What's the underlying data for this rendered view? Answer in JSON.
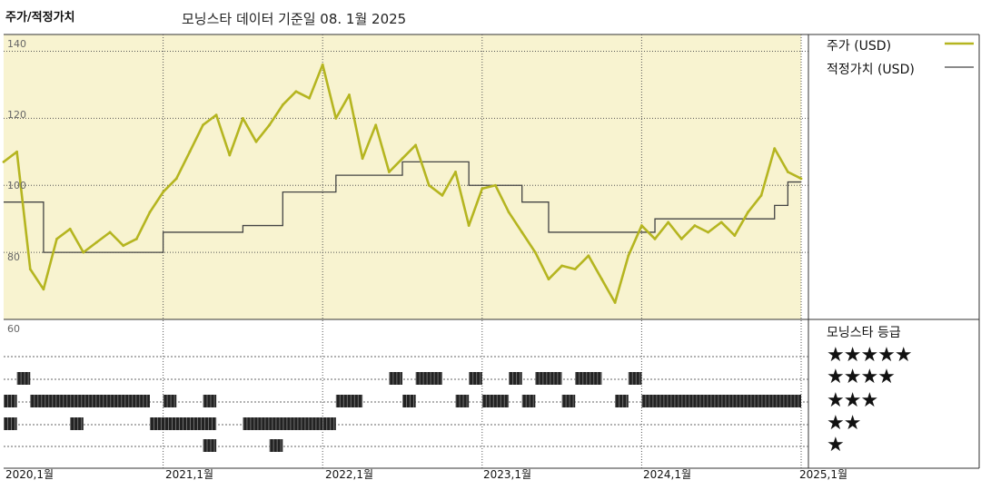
{
  "header": {
    "title": "주가/적정가치",
    "subtitle": "모닝스타 데이터 기준일 08. 1월 2025"
  },
  "legend": {
    "price_label": "주가 (USD)",
    "fair_label": "적정가치 (USD)"
  },
  "rating": {
    "title": "모닝스타 등급",
    "rows": [
      "★★★★★",
      "★★★★",
      "★★★",
      "★★",
      "★"
    ]
  },
  "colors": {
    "panel_bg": "#f8f3d0",
    "price_line": "#b5b520",
    "fair_line": "#444444",
    "grid": "#555555"
  },
  "chart_data": [
    {
      "type": "line",
      "title": "",
      "xlabel": "",
      "ylabel": "",
      "xlim": [
        "2020-01",
        "2025-01"
      ],
      "ylim": [
        60,
        145
      ],
      "y_ticks": [
        "140",
        "120",
        "100",
        "80",
        "60"
      ],
      "x_ticks": [
        "2020,1월",
        "2021,1월",
        "2022,1월",
        "2023,1월",
        "2024,1월",
        "2025,1월"
      ],
      "series": [
        {
          "name": "주가 (USD)",
          "points": [
            [
              "2020-01",
              107
            ],
            [
              "2020-02",
              110
            ],
            [
              "2020-03",
              75
            ],
            [
              "2020-04",
              69
            ],
            [
              "2020-05",
              84
            ],
            [
              "2020-06",
              87
            ],
            [
              "2020-07",
              80
            ],
            [
              "2020-08",
              83
            ],
            [
              "2020-09",
              86
            ],
            [
              "2020-10",
              82
            ],
            [
              "2020-11",
              84
            ],
            [
              "2020-12",
              92
            ],
            [
              "2021-01",
              98
            ],
            [
              "2021-02",
              102
            ],
            [
              "2021-03",
              110
            ],
            [
              "2021-04",
              118
            ],
            [
              "2021-05",
              121
            ],
            [
              "2021-06",
              109
            ],
            [
              "2021-07",
              120
            ],
            [
              "2021-08",
              113
            ],
            [
              "2021-09",
              118
            ],
            [
              "2021-10",
              124
            ],
            [
              "2021-11",
              128
            ],
            [
              "2021-12",
              126
            ],
            [
              "2022-01",
              136
            ],
            [
              "2022-02",
              120
            ],
            [
              "2022-03",
              127
            ],
            [
              "2022-04",
              108
            ],
            [
              "2022-05",
              118
            ],
            [
              "2022-06",
              104
            ],
            [
              "2022-07",
              108
            ],
            [
              "2022-08",
              112
            ],
            [
              "2022-09",
              100
            ],
            [
              "2022-10",
              97
            ],
            [
              "2022-11",
              104
            ],
            [
              "2022-12",
              88
            ],
            [
              "2023-01",
              99
            ],
            [
              "2023-02",
              100
            ],
            [
              "2023-03",
              92
            ],
            [
              "2023-04",
              86
            ],
            [
              "2023-05",
              80
            ],
            [
              "2023-06",
              72
            ],
            [
              "2023-07",
              76
            ],
            [
              "2023-08",
              75
            ],
            [
              "2023-09",
              79
            ],
            [
              "2023-10",
              72
            ],
            [
              "2023-11",
              65
            ],
            [
              "2023-12",
              79
            ],
            [
              "2024-01",
              88
            ],
            [
              "2024-02",
              84
            ],
            [
              "2024-03",
              89
            ],
            [
              "2024-04",
              84
            ],
            [
              "2024-05",
              88
            ],
            [
              "2024-06",
              86
            ],
            [
              "2024-07",
              89
            ],
            [
              "2024-08",
              85
            ],
            [
              "2024-09",
              92
            ],
            [
              "2024-10",
              97
            ],
            [
              "2024-11",
              111
            ],
            [
              "2024-12",
              104
            ],
            [
              "2025-01",
              102
            ]
          ]
        },
        {
          "name": "적정가치 (USD)",
          "step": true,
          "points": [
            [
              "2020-01",
              95
            ],
            [
              "2020-03",
              95
            ],
            [
              "2020-04",
              80
            ],
            [
              "2020-07",
              80
            ],
            [
              "2020-12",
              80
            ],
            [
              "2021-01",
              86
            ],
            [
              "2021-06",
              86
            ],
            [
              "2021-07",
              88
            ],
            [
              "2021-09",
              88
            ],
            [
              "2021-10",
              98
            ],
            [
              "2022-01",
              98
            ],
            [
              "2022-02",
              103
            ],
            [
              "2022-06",
              103
            ],
            [
              "2022-07",
              107
            ],
            [
              "2022-11",
              107
            ],
            [
              "2022-12",
              100
            ],
            [
              "2023-03",
              100
            ],
            [
              "2023-04",
              95
            ],
            [
              "2023-05",
              95
            ],
            [
              "2023-06",
              86
            ],
            [
              "2024-01",
              86
            ],
            [
              "2024-02",
              90
            ],
            [
              "2024-10",
              90
            ],
            [
              "2024-11",
              94
            ],
            [
              "2024-12",
              101
            ],
            [
              "2025-01",
              101
            ]
          ]
        }
      ]
    },
    {
      "type": "heatmap",
      "title": "모닝스타 등급",
      "rows": [
        5,
        4,
        3,
        2,
        1
      ],
      "segments": [
        {
          "stars": 4,
          "start": "2020-02",
          "end": "2020-03"
        },
        {
          "stars": 3,
          "start": "2020-01",
          "end": "2020-02"
        },
        {
          "stars": 3,
          "start": "2020-03",
          "end": "2020-12"
        },
        {
          "stars": 3,
          "start": "2021-01",
          "end": "2021-02"
        },
        {
          "stars": 3,
          "start": "2021-04",
          "end": "2021-05"
        },
        {
          "stars": 2,
          "start": "2020-01",
          "end": "2020-02"
        },
        {
          "stars": 2,
          "start": "2020-06",
          "end": "2020-07"
        },
        {
          "stars": 2,
          "start": "2020-12",
          "end": "2021-05"
        },
        {
          "stars": 2,
          "start": "2021-07",
          "end": "2022-01"
        },
        {
          "stars": 2,
          "start": "2022-01",
          "end": "2022-02"
        },
        {
          "stars": 1,
          "start": "2021-04",
          "end": "2021-05"
        },
        {
          "stars": 1,
          "start": "2021-09",
          "end": "2021-10"
        },
        {
          "stars": 3,
          "start": "2022-02",
          "end": "2022-04"
        },
        {
          "stars": 4,
          "start": "2022-06",
          "end": "2022-07"
        },
        {
          "stars": 3,
          "start": "2022-07",
          "end": "2022-08"
        },
        {
          "stars": 4,
          "start": "2022-08",
          "end": "2022-10"
        },
        {
          "stars": 3,
          "start": "2022-11",
          "end": "2022-12"
        },
        {
          "stars": 4,
          "start": "2022-12",
          "end": "2023-01"
        },
        {
          "stars": 3,
          "start": "2023-01",
          "end": "2023-03"
        },
        {
          "stars": 4,
          "start": "2023-03",
          "end": "2023-04"
        },
        {
          "stars": 3,
          "start": "2023-04",
          "end": "2023-05"
        },
        {
          "stars": 4,
          "start": "2023-05",
          "end": "2023-07"
        },
        {
          "stars": 3,
          "start": "2023-07",
          "end": "2023-08"
        },
        {
          "stars": 4,
          "start": "2023-08",
          "end": "2023-10"
        },
        {
          "stars": 3,
          "start": "2023-11",
          "end": "2023-12"
        },
        {
          "stars": 4,
          "start": "2023-12",
          "end": "2024-01"
        },
        {
          "stars": 3,
          "start": "2024-01",
          "end": "2025-01"
        }
      ]
    }
  ]
}
